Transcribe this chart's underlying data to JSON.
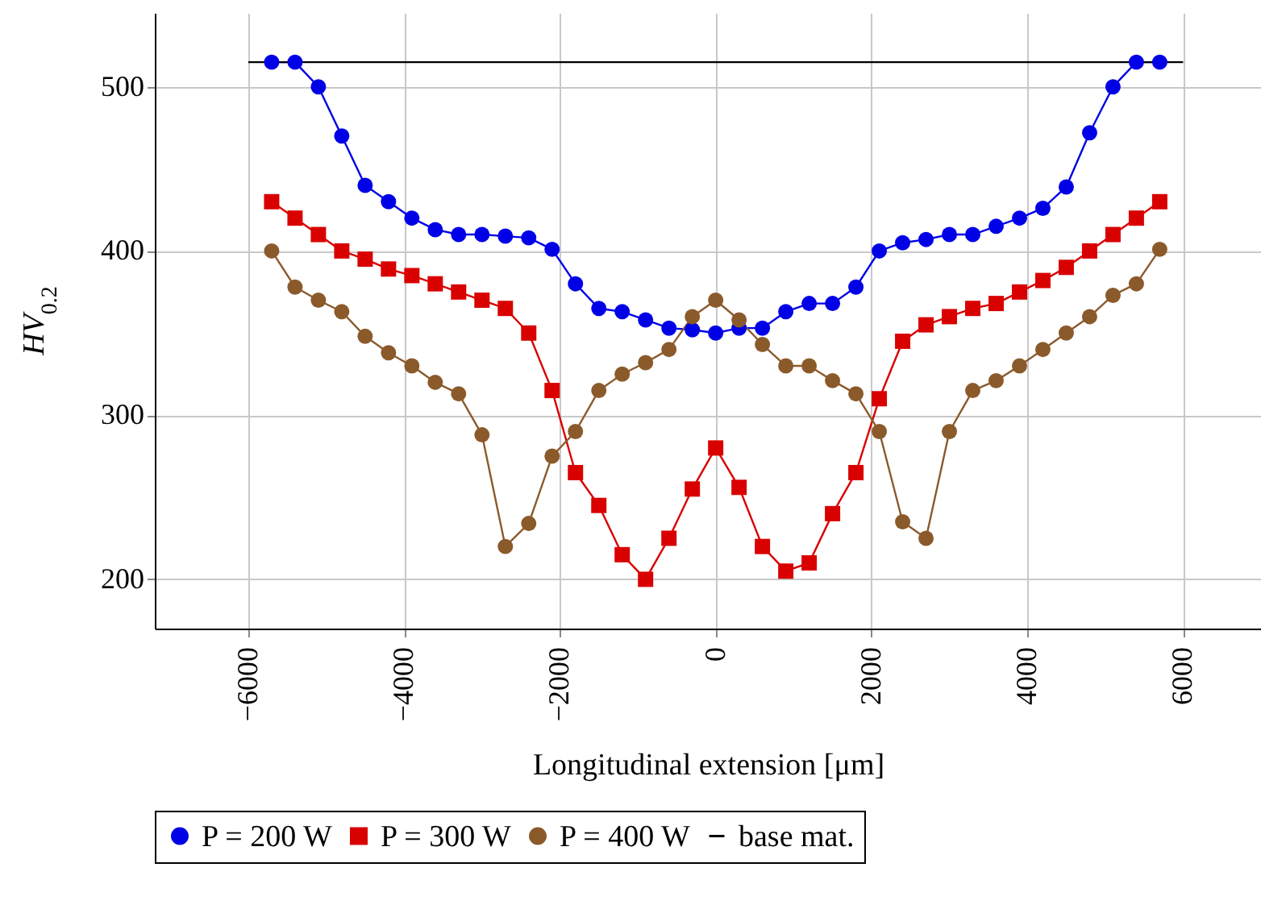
{
  "chart_data": {
    "type": "line",
    "xlabel": "Longitudinal extension [μm]",
    "ylabel": "HV$_{0.2}$",
    "x": [
      -5700,
      -5400,
      -5100,
      -4800,
      -4500,
      -4200,
      -3900,
      -3600,
      -3300,
      -3000,
      -2700,
      -2400,
      -2100,
      -1800,
      -1500,
      -1200,
      -900,
      -600,
      -300,
      0,
      300,
      600,
      900,
      1200,
      1500,
      1800,
      2100,
      2400,
      2700,
      3000,
      3300,
      3600,
      3900,
      4200,
      4500,
      4800,
      5100,
      5400,
      5700
    ],
    "series": [
      {
        "name": "P = 200 W",
        "color": "#0000e6",
        "marker": "circle",
        "values": [
          515,
          515,
          500,
          470,
          440,
          430,
          420,
          413,
          410,
          410,
          409,
          408,
          401,
          380,
          365,
          363,
          358,
          353,
          352,
          350,
          353,
          353,
          363,
          368,
          368,
          378,
          400,
          405,
          407,
          410,
          410,
          415,
          420,
          426,
          439,
          472,
          500,
          515,
          515
        ]
      },
      {
        "name": "P = 300 W",
        "color": "#d90000",
        "marker": "square",
        "values": [
          430,
          420,
          410,
          400,
          395,
          389,
          385,
          380,
          375,
          370,
          365,
          350,
          315,
          265,
          245,
          215,
          200,
          225,
          255,
          280,
          256,
          220,
          205,
          210,
          240,
          265,
          310,
          345,
          355,
          360,
          365,
          368,
          375,
          382,
          390,
          400,
          410,
          420,
          430
        ]
      },
      {
        "name": "P = 400 W",
        "color": "#8b5a2b",
        "marker": "circle",
        "values": [
          400,
          378,
          370,
          363,
          348,
          338,
          330,
          320,
          313,
          288,
          220,
          234,
          275,
          290,
          315,
          325,
          332,
          340,
          360,
          370,
          358,
          343,
          330,
          330,
          321,
          313,
          290,
          235,
          225,
          290,
          315,
          321,
          330,
          340,
          350,
          360,
          373,
          380,
          401
        ]
      },
      {
        "name": "base mat.",
        "color": "#000000",
        "marker": "none",
        "x": [
          -6000,
          6000
        ],
        "values": [
          515,
          515
        ]
      }
    ],
    "xlim": [
      -7200,
      7000
    ],
    "xticks": [
      -6000,
      -4000,
      -2000,
      0,
      2000,
      4000,
      6000
    ],
    "ylim": [
      170,
      545
    ],
    "yticks": [
      200,
      300,
      400,
      500
    ],
    "grid": true,
    "legend": "bottom"
  }
}
